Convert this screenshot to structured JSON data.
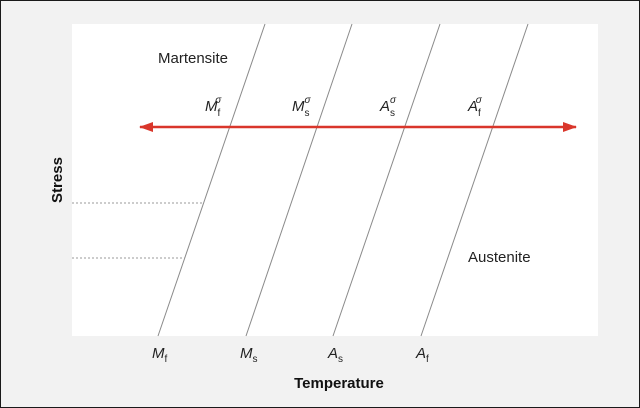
{
  "regions": {
    "top_left": "Martensite",
    "bottom_right": "Austenite"
  },
  "axes": {
    "x_label": "Temperature",
    "y_label": "Stress"
  },
  "transition_lines": [
    {
      "symbol": "M",
      "subscript": "f",
      "superscript": "σ"
    },
    {
      "symbol": "M",
      "subscript": "s",
      "superscript": "σ"
    },
    {
      "symbol": "A",
      "subscript": "s",
      "superscript": "σ"
    },
    {
      "symbol": "A",
      "subscript": "f",
      "superscript": "σ"
    }
  ],
  "colors": {
    "arrow": "#d9362b",
    "plot_background": "#ffffff",
    "frame_background": "#f2f2f2",
    "line": "#8a8a8a",
    "dotted": "#9a9a9a"
  },
  "icons": [
    "double-headed-arrow"
  ]
}
